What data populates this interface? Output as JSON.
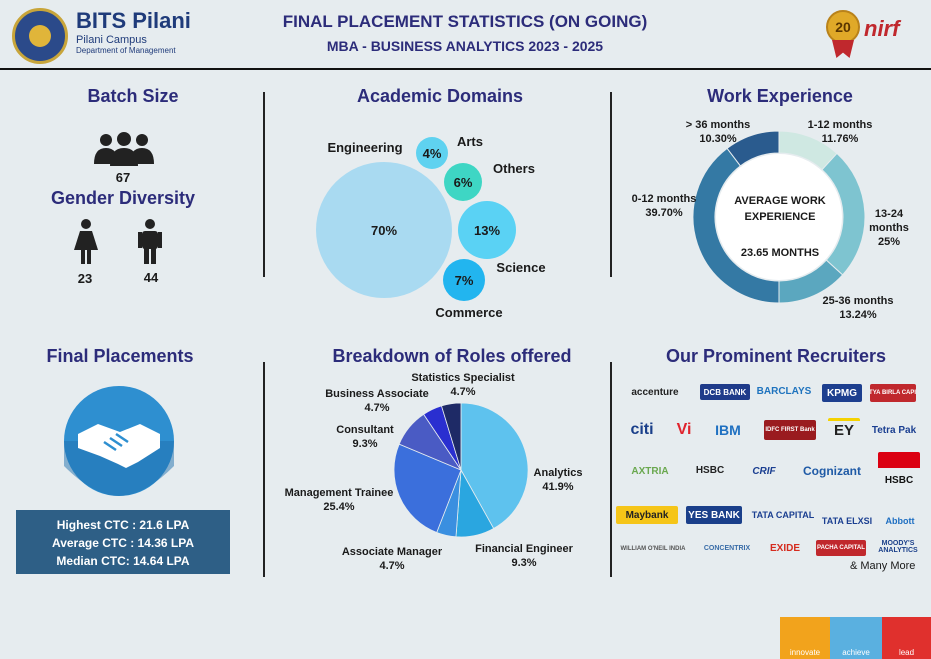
{
  "header": {
    "brand_name": "BITS Pilani",
    "brand_sub": "Pilani Campus",
    "brand_dept": "Department of Management",
    "title_line1": "FINAL PLACEMENT STATISTICS (ON GOING)",
    "title_line2": "MBA - BUSINESS ANALYTICS 2023 - 2025",
    "medal_number": "20",
    "nirf_label": "nirf"
  },
  "batch": {
    "title": "Batch Size",
    "count": "67",
    "gender_title": "Gender Diversity",
    "female_count": "23",
    "male_count": "44"
  },
  "academic": {
    "title": "Academic Domains",
    "domains": [
      {
        "label": "Engineering",
        "value": "70%",
        "color": "#a9daf1"
      },
      {
        "label": "Arts",
        "value": "4%",
        "color": "#5fd2f0"
      },
      {
        "label": "Others",
        "value": "6%",
        "color": "#3ed6c4"
      },
      {
        "label": "Science",
        "value": "13%",
        "color": "#5ad2f4"
      },
      {
        "label": "Commerce",
        "value": "7%",
        "color": "#22b5ef"
      }
    ]
  },
  "work": {
    "title": "Work Experience",
    "center_line1": "AVERAGE WORK",
    "center_line2": "EXPERIENCE",
    "center_value": "23.65 MONTHS",
    "segments": [
      {
        "label": "1-12 months",
        "value": "11.76%",
        "pct": 11.76,
        "color": "#cfe8e2"
      },
      {
        "label": "13-24 months",
        "value": "25%",
        "pct": 25,
        "color": "#7ec4d0"
      },
      {
        "label": "25-36 months",
        "value": "13.24%",
        "pct": 13.24,
        "color": "#5ba7bf"
      },
      {
        "label": "0-12 months",
        "value": "39.70%",
        "pct": 39.7,
        "color": "#3479a4"
      },
      {
        "label": "> 36 months",
        "value": "10.30%",
        "pct": 10.3,
        "color": "#2a5b8e"
      }
    ]
  },
  "placements": {
    "title": "Final Placements",
    "highest": "Highest CTC : 21.6 LPA",
    "average": "Average CTC : 14.36 LPA",
    "median": "Median CTC: 14.64 LPA"
  },
  "roles": {
    "title": "Breakdown of Roles offered",
    "slices": [
      {
        "label": "Analytics",
        "value": "41.9%",
        "pct": 41.9,
        "color": "#5ec2ee"
      },
      {
        "label": "Financial Engineer",
        "value": "9.3%",
        "pct": 9.3,
        "color": "#2aa6e0"
      },
      {
        "label": "Associate Manager",
        "value": "4.7%",
        "pct": 4.7,
        "color": "#3a8fe0"
      },
      {
        "label": "Management Trainee",
        "value": "25.4%",
        "pct": 25.4,
        "color": "#3b6fdc"
      },
      {
        "label": "Consultant",
        "value": "9.3%",
        "pct": 9.3,
        "color": "#4a5bc4"
      },
      {
        "label": "Business Associate",
        "value": "4.7%",
        "pct": 4.7,
        "color": "#2a2fd0"
      },
      {
        "label": "Statistics Specialist",
        "value": "4.7%",
        "pct": 4.7,
        "color": "#1e2a66"
      }
    ]
  },
  "recruiters": {
    "title": "Our Prominent Recruiters",
    "logos": [
      "accenture",
      "DCB BANK",
      "BARCLAYS",
      "KPMG",
      "ADITYA BIRLA CAPITAL",
      "citi",
      "Vi",
      "IBM",
      "IDFC FIRST Bank",
      "EY",
      "Tetra Pak",
      "AXTRIA",
      "HSBC",
      "CRIF",
      "Cognizant",
      "HSBC",
      "Maybank",
      "YES BANK",
      "TATA CAPITAL",
      "TATA ELXSI",
      "Abbott",
      "WILLIAM O'NEIL INDIA",
      "CONCENTRIX",
      "EXIDE",
      "PACHA CAPITAL",
      "MOODY'S ANALYTICS"
    ],
    "many_more": "& Many More"
  },
  "footer": {
    "innovate": "innovate",
    "achieve": "achieve",
    "lead": "lead"
  }
}
